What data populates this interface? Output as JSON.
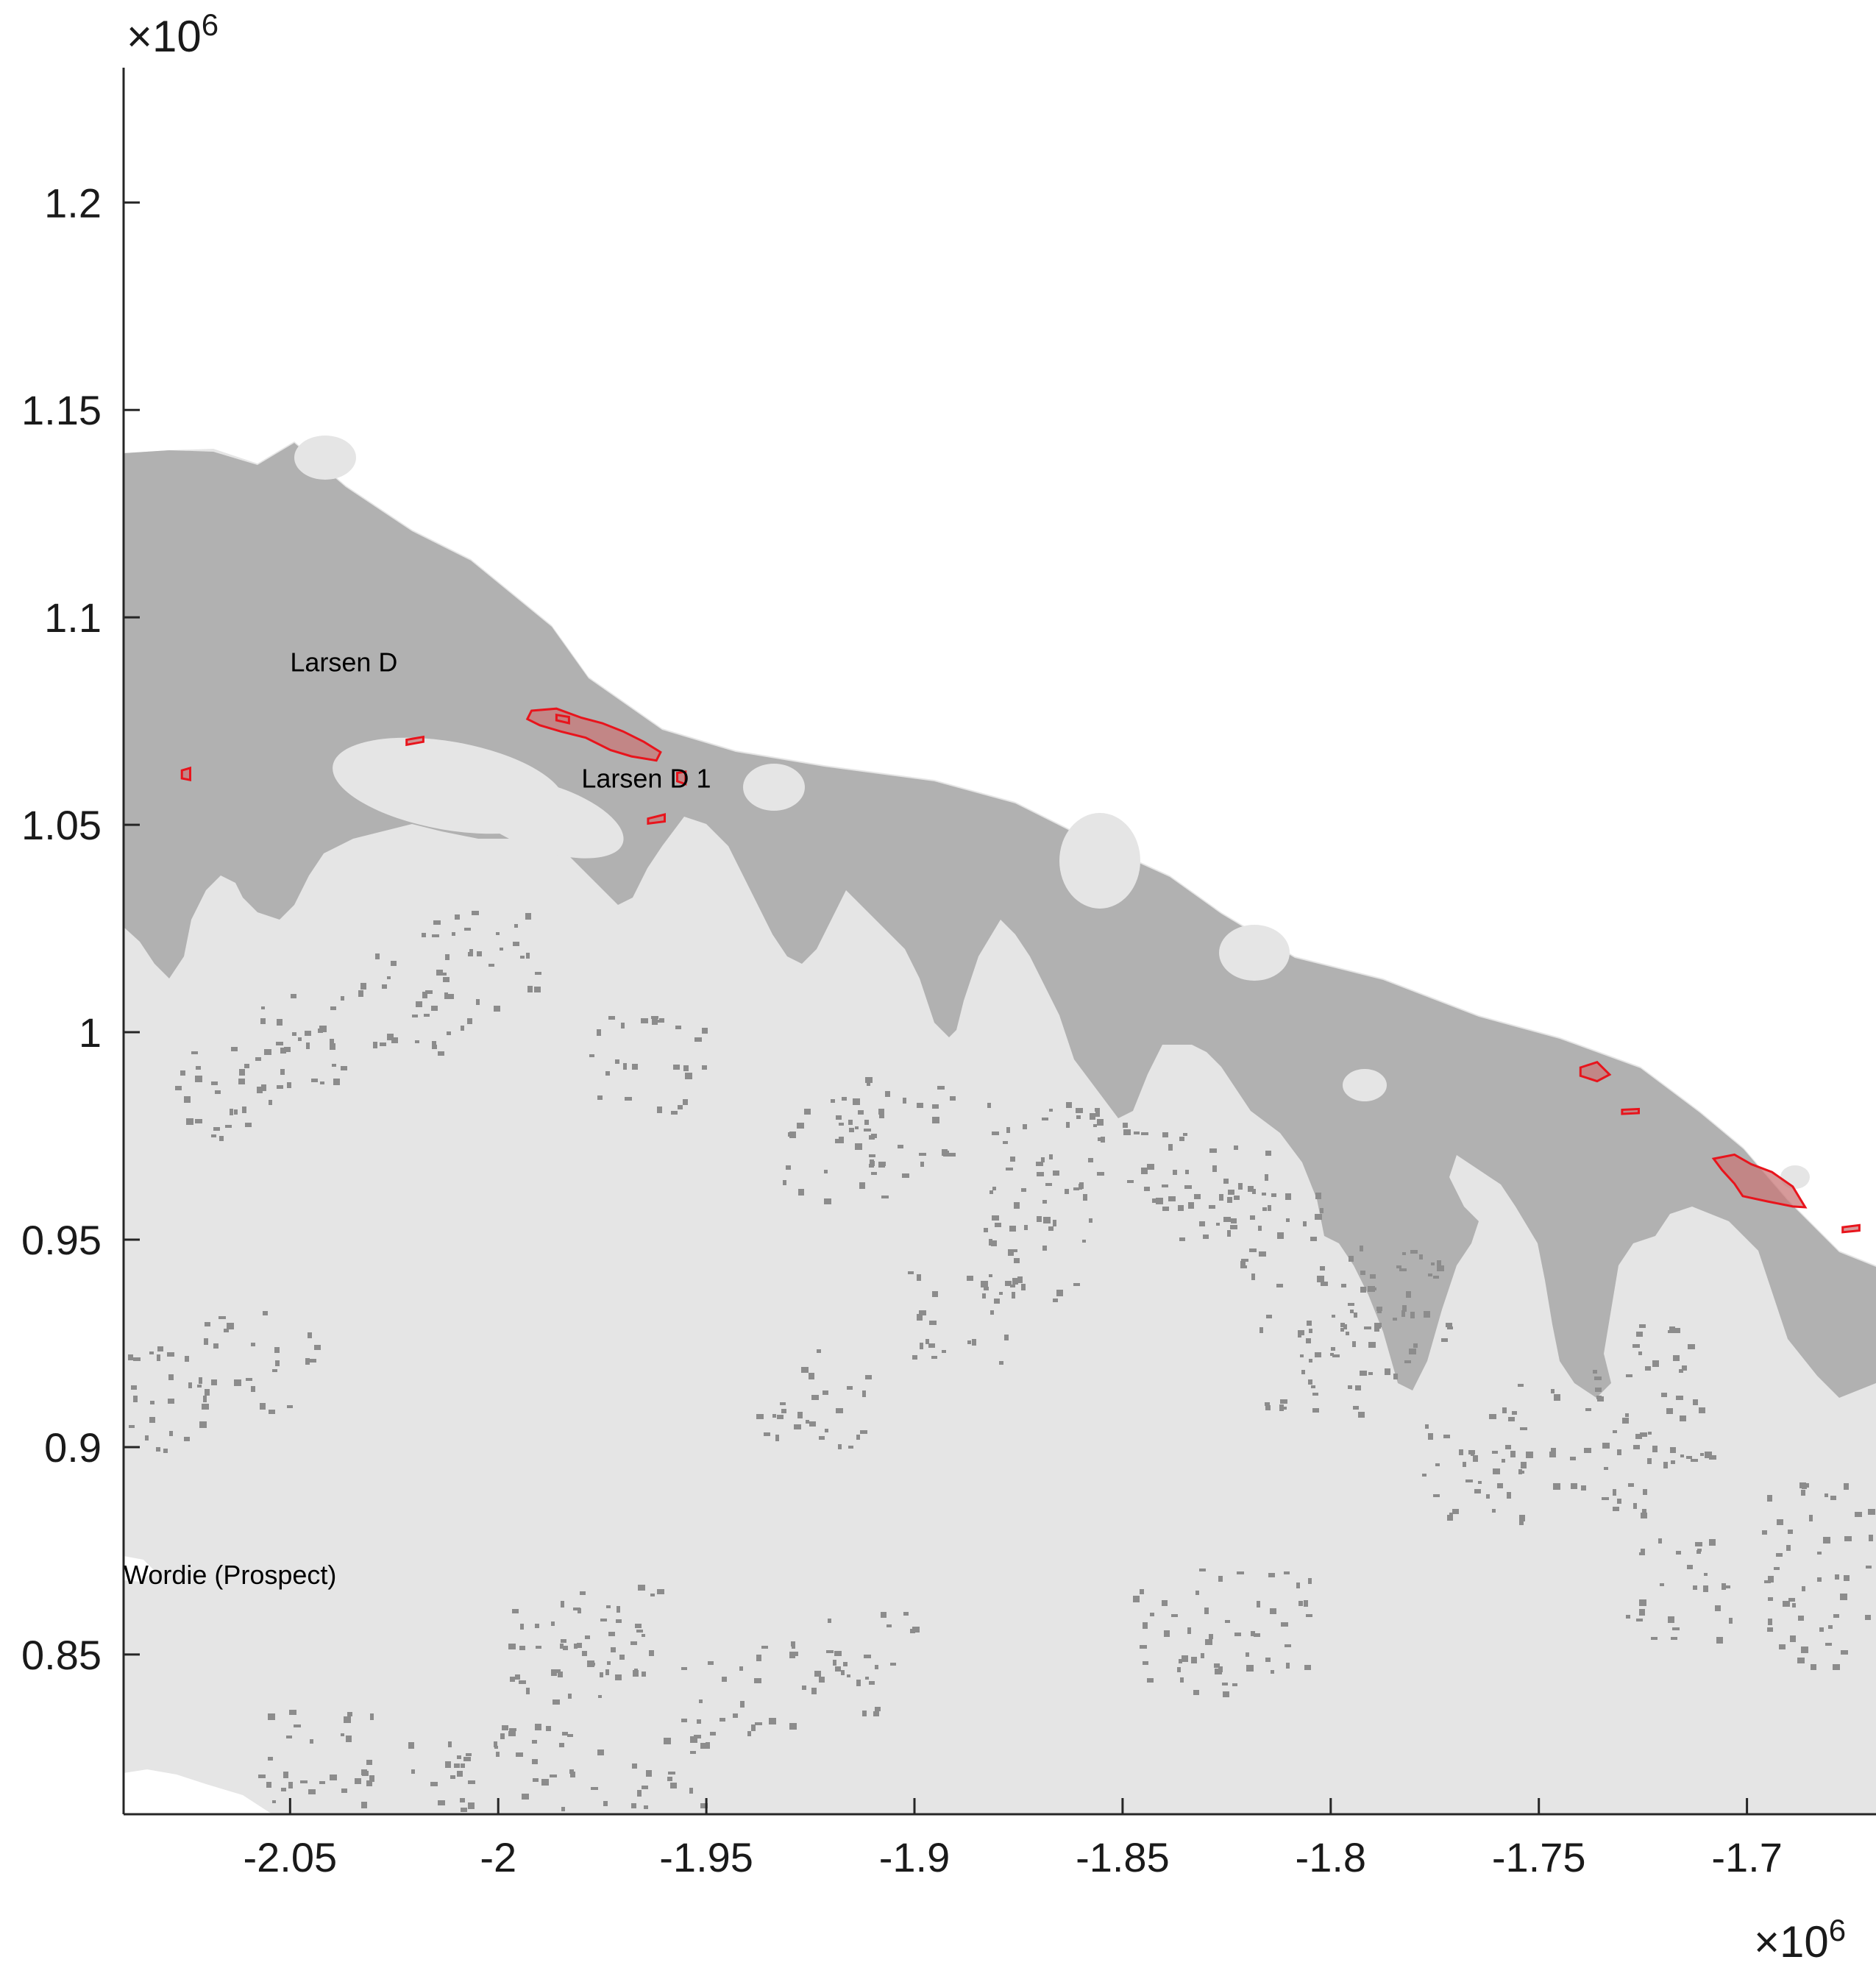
{
  "chart_data": {
    "type": "map",
    "colors": {
      "background": "#ffffff",
      "land": "#e5e5e5",
      "ice_shelf": "#b1b1b1",
      "rock": "#8c8c8c",
      "highlight_outline": "#e8141c",
      "highlight_fill": "#c87878",
      "axis": "#262626"
    },
    "x_axis": {
      "range": [
        -2.09,
        -1.669
      ],
      "ticks": [
        -2.05,
        -2.0,
        -1.95,
        -1.9,
        -1.85,
        -1.8,
        -1.75,
        -1.7
      ],
      "tick_labels": [
        "-2.05",
        "-2",
        "-1.95",
        "-1.9",
        "-1.85",
        "-1.8",
        "-1.75",
        "-1.7"
      ],
      "exponent_label": "×10^6"
    },
    "y_axis": {
      "range": [
        0.8115,
        1.2325
      ],
      "ticks": [
        0.85,
        0.9,
        0.95,
        1.0,
        1.05,
        1.1,
        1.15,
        1.2
      ],
      "tick_labels": [
        "0.85",
        "0.9",
        "0.95",
        "1",
        "1.05",
        "1.1",
        "1.15",
        "1.2"
      ],
      "exponent_label": "×10^6"
    },
    "grid": false,
    "annotations": [
      {
        "text": "Larsen D",
        "x": -2.05,
        "y": 1.087
      },
      {
        "text": "Larsen D 1",
        "x": -1.98,
        "y": 1.059
      },
      {
        "text": "Wordie (Prospect)",
        "x": -2.09,
        "y": 0.867
      }
    ],
    "highlighted_regions": [
      {
        "outline": [
          [
            -1.992,
            1.0775
          ],
          [
            -1.986,
            1.078
          ],
          [
            -1.98,
            1.0758
          ],
          [
            -1.975,
            1.0745
          ],
          [
            -1.97,
            1.0725
          ],
          [
            -1.965,
            1.07
          ],
          [
            -1.961,
            1.0675
          ],
          [
            -1.962,
            1.0655
          ],
          [
            -1.968,
            1.0665
          ],
          [
            -1.973,
            1.068
          ],
          [
            -1.979,
            1.071
          ],
          [
            -1.985,
            1.0725
          ],
          [
            -1.99,
            1.074
          ],
          [
            -1.993,
            1.0755
          ]
        ]
      },
      {
        "outline": [
          [
            -1.708,
            0.9695
          ],
          [
            -1.703,
            0.9705
          ],
          [
            -1.699,
            0.9682
          ],
          [
            -1.694,
            0.9663
          ],
          [
            -1.689,
            0.9628
          ],
          [
            -1.686,
            0.9578
          ],
          [
            -1.689,
            0.958
          ],
          [
            -1.695,
            0.9592
          ],
          [
            -1.701,
            0.9605
          ],
          [
            -1.703,
            0.9635
          ],
          [
            -1.706,
            0.9668
          ]
        ]
      },
      {
        "outline": [
          [
            -1.74,
            0.9915
          ],
          [
            -1.736,
            0.9928
          ],
          [
            -1.733,
            0.9898
          ],
          [
            -1.736,
            0.9882
          ],
          [
            -1.74,
            0.9895
          ]
        ]
      },
      {
        "outline": [
          [
            -1.986,
            1.0765
          ],
          [
            -1.983,
            1.076
          ],
          [
            -1.983,
            1.0745
          ],
          [
            -1.986,
            1.0752
          ]
        ]
      },
      {
        "outline": [
          [
            -2.022,
            1.0705
          ],
          [
            -2.018,
            1.0712
          ],
          [
            -2.018,
            1.07
          ],
          [
            -2.022,
            1.0693
          ]
        ]
      },
      {
        "outline": [
          [
            -1.957,
            1.0625
          ],
          [
            -1.955,
            1.0628
          ],
          [
            -1.955,
            1.0598
          ],
          [
            -1.957,
            1.0605
          ]
        ]
      },
      {
        "outline": [
          [
            -1.964,
            1.0515
          ],
          [
            -1.96,
            1.0525
          ],
          [
            -1.96,
            1.0508
          ],
          [
            -1.964,
            1.0503
          ]
        ]
      },
      {
        "outline": [
          [
            -2.076,
            1.0631
          ],
          [
            -2.074,
            1.0637
          ],
          [
            -2.074,
            1.0608
          ],
          [
            -2.076,
            1.0612
          ]
        ]
      },
      {
        "outline": [
          [
            -1.73,
            0.9813
          ],
          [
            -1.726,
            0.9815
          ],
          [
            -1.726,
            0.9805
          ],
          [
            -1.73,
            0.9803
          ]
        ]
      },
      {
        "outline": [
          [
            -1.677,
            0.953
          ],
          [
            -1.673,
            0.9535
          ],
          [
            -1.673,
            0.9522
          ],
          [
            -1.677,
            0.9518
          ]
        ]
      }
    ]
  }
}
